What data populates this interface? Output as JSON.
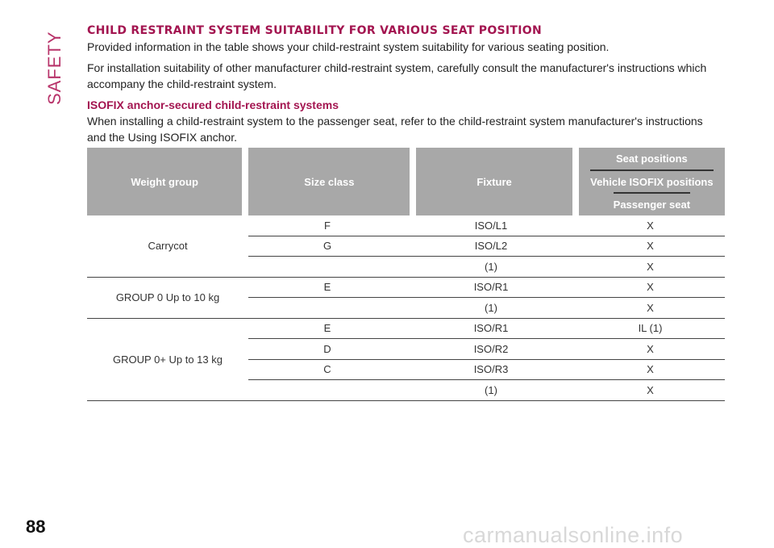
{
  "sidebar": {
    "section": "SAFETY"
  },
  "page": {
    "number": "88",
    "watermark": "carmanualsonline.info"
  },
  "content": {
    "title": "CHILD RESTRAINT SYSTEM SUITABILITY FOR VARIOUS SEAT POSITION",
    "intro": "Provided information in the table shows your child-restraint system suitability for various seating position.",
    "installation_note": "For installation suitability of other manufacturer child-restraint system, carefully consult the manufacturer's instructions which accompany the child-restraint system.",
    "subtitle": "ISOFIX anchor-secured child-restraint systems",
    "subtitle_text": "When installing a child-restraint system to the passenger seat, refer to the child-restraint system manufacturer's instructions and the Using ISOFIX anchor."
  },
  "table": {
    "headers": {
      "weight_group": "Weight group",
      "size_class": "Size class",
      "fixture": "Fixture",
      "seat_positions": "Seat positions",
      "vehicle_isofix_positions": "Vehicle ISOFIX positions",
      "passenger_seat": "Passenger seat"
    },
    "groups": [
      {
        "label": "Carrycot",
        "rows": [
          {
            "size": "F",
            "fixture": "ISO/L1",
            "seat": "X"
          },
          {
            "size": "G",
            "fixture": "ISO/L2",
            "seat": "X"
          },
          {
            "size": "",
            "fixture": "(1)",
            "seat": "X"
          }
        ]
      },
      {
        "label": "GROUP 0 Up to 10 kg",
        "rows": [
          {
            "size": "E",
            "fixture": "ISO/R1",
            "seat": "X"
          },
          {
            "size": "",
            "fixture": "(1)",
            "seat": "X"
          }
        ]
      },
      {
        "label": "GROUP 0+ Up to 13 kg",
        "rows": [
          {
            "size": "E",
            "fixture": "ISO/R1",
            "seat": "IL (1)"
          },
          {
            "size": "D",
            "fixture": "ISO/R2",
            "seat": "X"
          },
          {
            "size": "C",
            "fixture": "ISO/R3",
            "seat": "X"
          },
          {
            "size": "",
            "fixture": "(1)",
            "seat": "X"
          }
        ]
      }
    ]
  }
}
